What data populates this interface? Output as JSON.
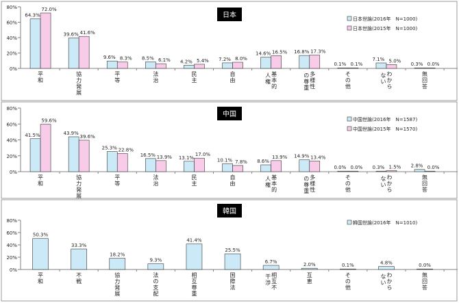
{
  "chart_data": [
    {
      "type": "bar",
      "title": "日本",
      "ylim": [
        0,
        80
      ],
      "yticks": [
        "0%",
        "20%",
        "40%",
        "60%",
        "80%"
      ],
      "categories": [
        "平和",
        "協力発展",
        "平等",
        "法治",
        "民主",
        "自由",
        "基本的人権",
        "多様性の尊重",
        "その他",
        "わからない",
        "無回答"
      ],
      "series": [
        {
          "name": "日本世論(2016年　N=1000)",
          "color": "#cce9f7",
          "values": [
            64.3,
            39.6,
            9.6,
            8.5,
            4.2,
            7.2,
            14.6,
            16.8,
            0.1,
            7.1,
            0.3
          ],
          "labels": [
            "64.3%",
            "39.6%",
            "9.6%",
            "8.5%",
            "4.2%",
            "7.2%",
            "14.6%",
            "16.8%",
            "0.1%",
            "7.1%",
            "0.3%"
          ]
        },
        {
          "name": "日本世論(2015年　N=1000)",
          "color": "#f8cbe9",
          "values": [
            72.0,
            41.6,
            8.3,
            6.1,
            5.4,
            8.0,
            16.5,
            17.3,
            0.1,
            5.0,
            0.0
          ],
          "labels": [
            "72.0%",
            "41.6%",
            "8.3%",
            "6.1%",
            "5.4%",
            "8.0%",
            "16.5%",
            "17.3%",
            "0.1%",
            "5.0%",
            "0.0%"
          ]
        }
      ]
    },
    {
      "type": "bar",
      "title": "中国",
      "ylim": [
        0,
        80
      ],
      "yticks": [
        "0%",
        "20%",
        "40%",
        "60%",
        "80%"
      ],
      "categories": [
        "平和",
        "協力発展",
        "平等",
        "法治",
        "民主",
        "自由",
        "基本的人権",
        "多様性の尊重",
        "その他",
        "わからない",
        "無回答"
      ],
      "series": [
        {
          "name": "中国世論(2016年　N=1587)",
          "color": "#cce9f7",
          "values": [
            41.5,
            43.9,
            25.3,
            16.5,
            13.1,
            10.1,
            8.6,
            14.9,
            0.0,
            0.3,
            2.8
          ],
          "labels": [
            "41.5%",
            "43.9%",
            "25.3%",
            "16.5%",
            "13.1%",
            "10.1%",
            "8.6%",
            "14.9%",
            "0.0%",
            "0.3%",
            "2.8%"
          ]
        },
        {
          "name": "中国世論(2015年　N=1570)",
          "color": "#f8cbe9",
          "values": [
            59.6,
            39.6,
            22.8,
            13.9,
            17.0,
            7.8,
            13.9,
            13.4,
            0.0,
            1.5,
            0.0
          ],
          "labels": [
            "59.6%",
            "39.6%",
            "22.8%",
            "13.9%",
            "17.0%",
            "7.8%",
            "13.9%",
            "13.4%",
            "0.0%",
            "1.5%",
            "0.0%"
          ]
        }
      ]
    },
    {
      "type": "bar",
      "title": "韓国",
      "ylim": [
        0,
        80
      ],
      "yticks": [
        "0%",
        "20%",
        "40%",
        "60%",
        "80%"
      ],
      "categories": [
        "平和",
        "不戦",
        "協力発展",
        "法の支配",
        "相互尊重",
        "国際法",
        "相互不干渉",
        "互恵",
        "その他",
        "わからない",
        "無回答"
      ],
      "series": [
        {
          "name": "韓国世論(2016年　N=1010)",
          "color": "#cce9f7",
          "values": [
            50.3,
            33.3,
            18.2,
            9.3,
            41.4,
            25.5,
            6.7,
            2.0,
            0.1,
            4.8,
            0.0
          ],
          "labels": [
            "50.3%",
            "33.3%",
            "18.2%",
            "9.3%",
            "41.4%",
            "25.5%",
            "6.7%",
            "2.0%",
            "0.1%",
            "4.8%",
            "0.0%"
          ]
        }
      ]
    }
  ]
}
